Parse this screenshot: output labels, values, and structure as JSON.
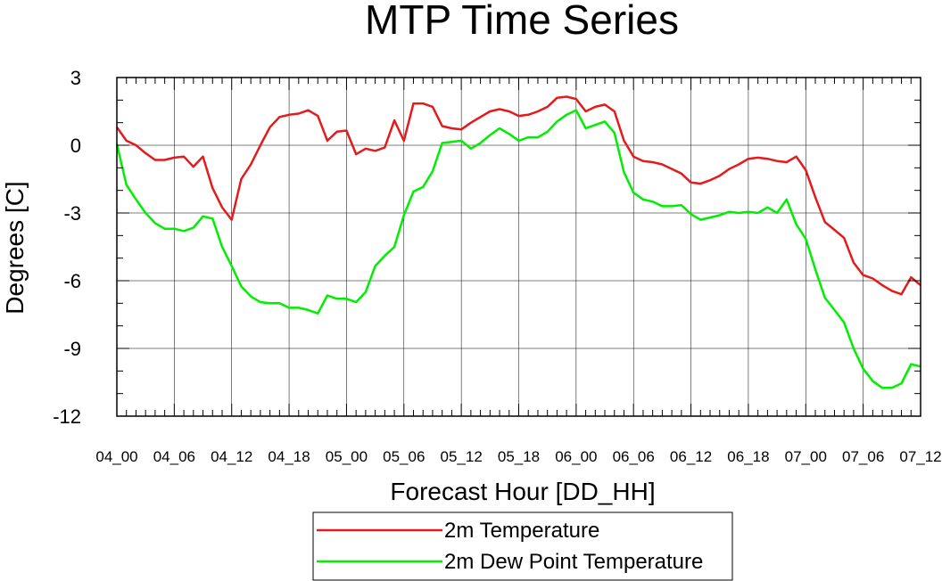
{
  "chart_data": {
    "type": "line",
    "title": "MTP Time Series",
    "xlabel": "Forecast Hour [DD_HH]",
    "ylabel": "Degrees [C]",
    "xlim": [
      0,
      84
    ],
    "ylim": [
      -12,
      3
    ],
    "grid": true,
    "legend_position": "bottom-center",
    "x_ticks": [
      0,
      6,
      12,
      18,
      24,
      30,
      36,
      42,
      48,
      54,
      60,
      66,
      72,
      78,
      84
    ],
    "x_tick_labels": [
      "04_00",
      "04_06",
      "04_12",
      "04_18",
      "05_00",
      "05_06",
      "05_12",
      "05_18",
      "06_00",
      "06_06",
      "06_12",
      "06_18",
      "07_00",
      "07_06",
      "07_12"
    ],
    "y_ticks": [
      3,
      0,
      -3,
      -6,
      -9,
      -12
    ],
    "y_tick_labels": [
      "3",
      "0",
      "-3",
      "-6",
      "-9",
      "-12"
    ],
    "x": [
      0,
      1,
      2,
      3,
      4,
      5,
      6,
      7,
      8,
      9,
      10,
      11,
      12,
      13,
      14,
      15,
      16,
      17,
      18,
      19,
      20,
      21,
      22,
      23,
      24,
      25,
      26,
      27,
      28,
      29,
      30,
      31,
      32,
      33,
      34,
      35,
      36,
      37,
      38,
      39,
      40,
      41,
      42,
      43,
      44,
      45,
      46,
      47,
      48,
      49,
      50,
      51,
      52,
      53,
      54,
      55,
      56,
      57,
      58,
      59,
      60,
      61,
      62,
      63,
      64,
      65,
      66,
      67,
      68,
      69,
      70,
      71,
      72,
      73,
      74,
      75,
      76,
      77,
      78,
      79,
      80,
      81,
      82,
      83,
      84
    ],
    "series": [
      {
        "name": "2m Temperature",
        "color": "#e41a1c",
        "values": [
          0.8,
          0.2,
          0.0,
          -0.35,
          -0.65,
          -0.65,
          -0.55,
          -0.5,
          -0.95,
          -0.5,
          -1.9,
          -2.75,
          -3.3,
          -1.5,
          -0.85,
          0.0,
          0.8,
          1.25,
          1.35,
          1.4,
          1.55,
          1.3,
          0.2,
          0.6,
          0.65,
          -0.4,
          -0.15,
          -0.25,
          -0.1,
          1.1,
          0.2,
          1.85,
          1.85,
          1.7,
          0.85,
          0.75,
          0.7,
          1.0,
          1.25,
          1.5,
          1.6,
          1.5,
          1.3,
          1.35,
          1.5,
          1.7,
          2.1,
          2.15,
          2.05,
          1.5,
          1.7,
          1.8,
          1.5,
          0.2,
          -0.5,
          -0.7,
          -0.75,
          -0.85,
          -1.05,
          -1.25,
          -1.65,
          -1.7,
          -1.55,
          -1.35,
          -1.05,
          -0.85,
          -0.6,
          -0.55,
          -0.6,
          -0.7,
          -0.75,
          -0.5,
          -1.1,
          -2.3,
          -3.4,
          -3.75,
          -4.1,
          -5.2,
          -5.75,
          -5.9,
          -6.2,
          -6.45,
          -6.6,
          -5.85,
          -6.2
        ]
      },
      {
        "name": "2m Dew Point Temperature",
        "color": "#00ee00",
        "values": [
          0.05,
          -1.75,
          -2.4,
          -3.0,
          -3.45,
          -3.7,
          -3.7,
          -3.8,
          -3.65,
          -3.15,
          -3.25,
          -4.5,
          -5.35,
          -6.25,
          -6.7,
          -6.95,
          -7.0,
          -7.0,
          -7.2,
          -7.2,
          -7.3,
          -7.45,
          -6.65,
          -6.8,
          -6.8,
          -6.95,
          -6.5,
          -5.35,
          -4.9,
          -4.5,
          -3.1,
          -2.05,
          -1.85,
          -1.15,
          0.1,
          0.15,
          0.2,
          -0.15,
          0.1,
          0.45,
          0.75,
          0.5,
          0.2,
          0.35,
          0.35,
          0.6,
          1.05,
          1.35,
          1.55,
          0.75,
          0.9,
          1.05,
          0.55,
          -1.2,
          -2.1,
          -2.4,
          -2.5,
          -2.7,
          -2.7,
          -2.65,
          -3.05,
          -3.3,
          -3.2,
          -3.1,
          -2.95,
          -3.0,
          -2.95,
          -3.0,
          -2.75,
          -3.0,
          -2.4,
          -3.5,
          -4.15,
          -5.5,
          -6.75,
          -7.3,
          -7.85,
          -9.0,
          -9.9,
          -10.45,
          -10.75,
          -10.75,
          -10.55,
          -9.7,
          -9.8
        ]
      }
    ]
  }
}
